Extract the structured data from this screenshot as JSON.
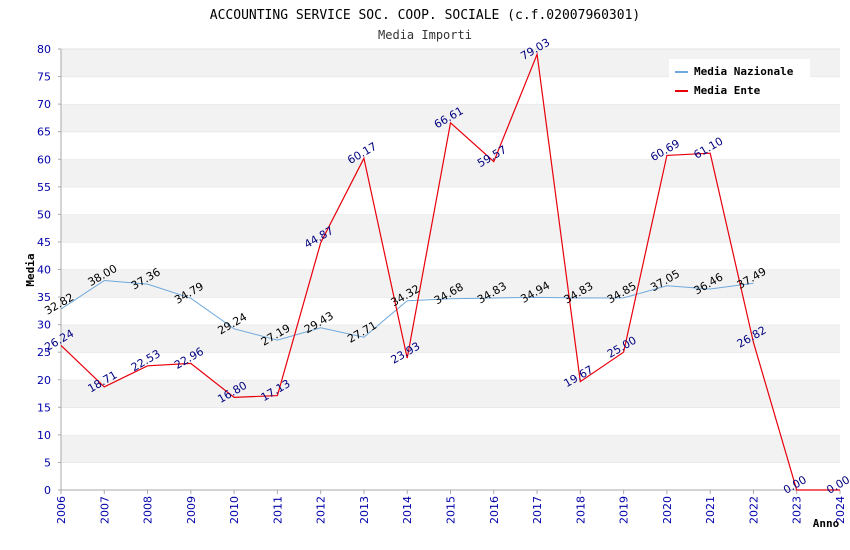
{
  "chart_data": {
    "type": "line",
    "title": "ACCOUNTING SERVICE SOC. COOP. SOCIALE (c.f.02007960301)",
    "subtitle": "Media Importi",
    "xlabel": "Anno",
    "ylabel": "Media",
    "x": [
      "2006",
      "2007",
      "2008",
      "2009",
      "2010",
      "2011",
      "2012",
      "2013",
      "2014",
      "2015",
      "2016",
      "2017",
      "2018",
      "2019",
      "2020",
      "2021",
      "2022",
      "2023",
      "2024"
    ],
    "ylim": [
      0,
      80
    ],
    "yticks": [
      "0",
      "5",
      "10",
      "15",
      "20",
      "25",
      "30",
      "35",
      "40",
      "45",
      "50",
      "55",
      "60",
      "65",
      "70",
      "75",
      "80"
    ],
    "grid": "horizontal alternating bands",
    "legend_position": "top-right",
    "series": [
      {
        "name": "Media Nazionale",
        "color": "#6fa8dc",
        "label_color": "#000000",
        "values": [
          32.82,
          38.0,
          37.36,
          34.79,
          29.24,
          27.19,
          29.43,
          27.71,
          34.32,
          34.68,
          34.83,
          34.94,
          34.83,
          34.85,
          37.05,
          36.46,
          37.49,
          null,
          null
        ],
        "labels": [
          "32.82",
          "38.00",
          "37.36",
          "34.79",
          "29.24",
          "27.19",
          "29.43",
          "27.71",
          "34.32",
          "34.68",
          "34.83",
          "34.94",
          "34.83",
          "34.85",
          "37.05",
          "36.46",
          "37.49",
          "",
          ""
        ]
      },
      {
        "name": "Media Ente",
        "color": "#e8000b",
        "label_color": "#000080",
        "values": [
          26.24,
          18.71,
          22.53,
          22.96,
          16.8,
          17.13,
          44.87,
          60.17,
          23.93,
          66.61,
          59.57,
          79.03,
          19.67,
          25.0,
          60.69,
          61.1,
          26.82,
          0.0,
          0.0
        ],
        "labels": [
          "26.24",
          "18.71",
          "22.53",
          "22.96",
          "16.80",
          "17.13",
          "44.87",
          "60.17",
          "23.93",
          "66.61",
          "59.57",
          "79.03",
          "19.67",
          "25.00",
          "60.69",
          "61.10",
          "26.82",
          "0.00",
          "0.00"
        ]
      }
    ]
  }
}
